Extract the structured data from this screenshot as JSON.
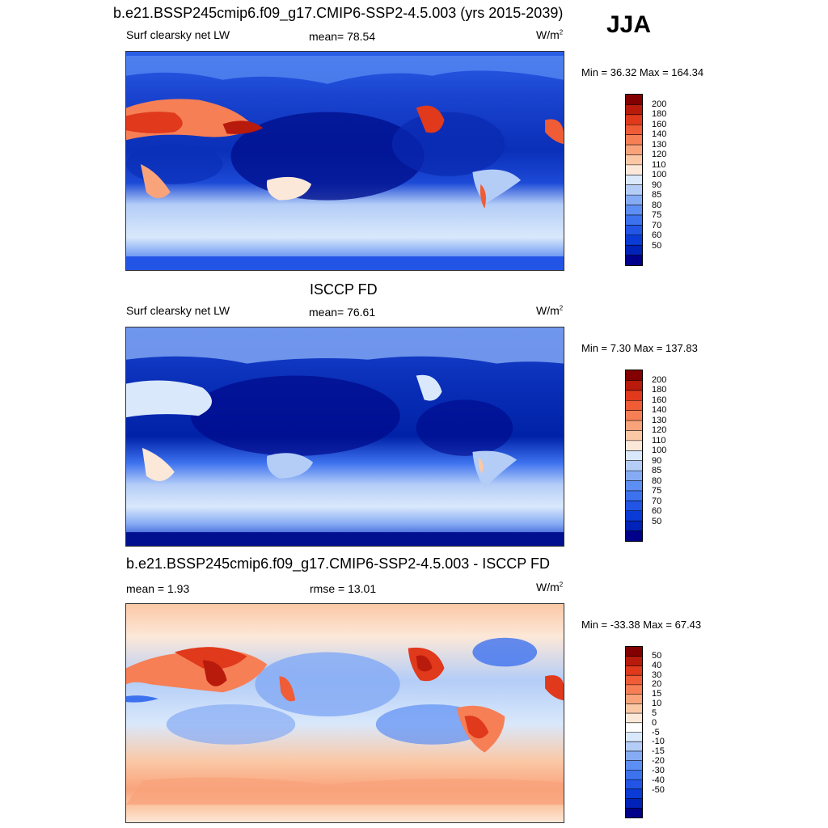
{
  "season": "JJA",
  "colors": {
    "scale_main": [
      "#00008a",
      "#0022b8",
      "#0a3bd6",
      "#2255e6",
      "#3d72ef",
      "#5d8ef3",
      "#86abf5",
      "#b4cdf7",
      "#d9e8fb",
      "#fce8d8",
      "#fbc8a6",
      "#f9a37b",
      "#f67f56",
      "#f05c36",
      "#e0391b",
      "#b81a0c",
      "#820000"
    ],
    "scale_diff": [
      "#00008a",
      "#0022b8",
      "#0a3bd6",
      "#2255e6",
      "#3d72ef",
      "#5d8ef3",
      "#86abf5",
      "#b4cdf7",
      "#d9e8fb",
      "#ffffff",
      "#fce8d8",
      "#fbc8a6",
      "#f9a37b",
      "#f67f56",
      "#f05c36",
      "#e0391b",
      "#b81a0c",
      "#820000"
    ]
  },
  "panels": [
    {
      "title": "b.e21.BSSP245cmip6.f09_g17.CMIP6-SSP2-4.5.003 (yrs 2015-2039)",
      "left_label": "Surf clearsky net LW",
      "mean_label": "mean=  78.54",
      "units": "W/m",
      "units_sup": "2",
      "minmax": "Min =  36.32 Max = 164.34",
      "ticks": [
        "200",
        "180",
        "160",
        "140",
        "130",
        "120",
        "110",
        "100",
        "90",
        "85",
        "80",
        "75",
        "70",
        "60",
        "50"
      ]
    },
    {
      "title": "ISCCP FD",
      "left_label": "Surf clearsky net LW",
      "mean_label": "mean=  76.61",
      "units": "W/m",
      "units_sup": "2",
      "minmax": "Min =   7.30 Max = 137.83",
      "ticks": [
        "200",
        "180",
        "160",
        "140",
        "130",
        "120",
        "110",
        "100",
        "90",
        "85",
        "80",
        "75",
        "70",
        "60",
        "50"
      ]
    },
    {
      "title": "b.e21.BSSP245cmip6.f09_g17.CMIP6-SSP2-4.5.003 - ISCCP FD",
      "left_label": "mean =   1.93",
      "mean_label": "rmse =  13.01",
      "units": "W/m",
      "units_sup": "2",
      "minmax": "Min = -33.38 Max =  67.43",
      "ticks": [
        "50",
        "40",
        "30",
        "20",
        "15",
        "10",
        "5",
        "0",
        "-5",
        "-10",
        "-15",
        "-20",
        "-30",
        "-40",
        "-50"
      ]
    }
  ]
}
